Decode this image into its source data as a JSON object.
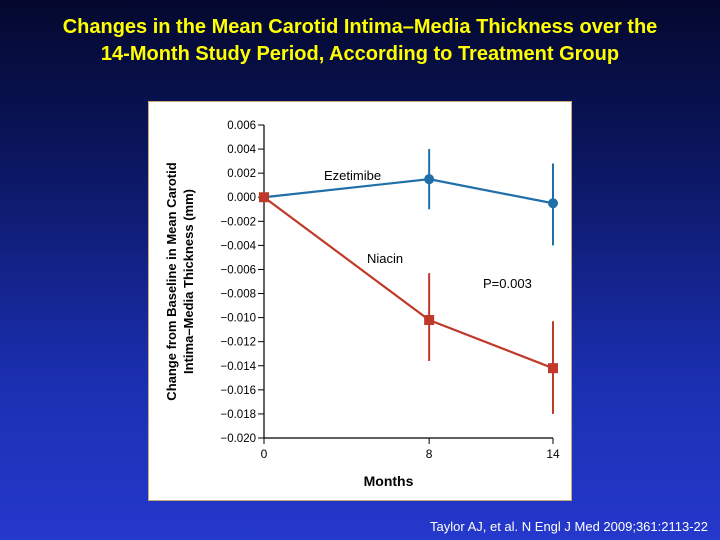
{
  "slide": {
    "title_line1": "Changes in the Mean Carotid Intima–Media Thickness over the",
    "title_line2": "14-Month Study Period, According to Treatment Group",
    "citation": "Taylor AJ, et al. N Engl J Med 2009;361:2113-22"
  },
  "chart_data": {
    "type": "line",
    "xlabel": "Months",
    "ylabel_line1": "Change from Baseline in Mean Carotid",
    "ylabel_line2": "Intima–Media Thickness (mm)",
    "x_ticks": [
      0,
      8,
      14
    ],
    "x_tick_labels": [
      "0",
      "8",
      "14"
    ],
    "xlim": [
      0,
      14
    ],
    "ylim": [
      -0.02,
      0.006
    ],
    "y_ticks": [
      0.006,
      0.004,
      0.002,
      0.0,
      -0.002,
      -0.004,
      -0.006,
      -0.008,
      -0.01,
      -0.012,
      -0.014,
      -0.016,
      -0.018,
      -0.02
    ],
    "y_tick_labels": [
      "0.006",
      "0.004",
      "0.002",
      "0.000",
      "−0.002",
      "−0.004",
      "−0.006",
      "−0.008",
      "−0.010",
      "−0.012",
      "−0.014",
      "−0.016",
      "−0.018",
      "−0.020"
    ],
    "grid": false,
    "series": [
      {
        "name": "Ezetimibe",
        "color": "#1f6fa8",
        "marker": "circle",
        "x": [
          0,
          8,
          14
        ],
        "y": [
          0.0,
          0.0015,
          -0.0005
        ],
        "err_low": [
          0.0,
          -0.001,
          -0.004
        ],
        "err_high": [
          0.0,
          0.004,
          0.0028
        ]
      },
      {
        "name": "Niacin",
        "color": "#c0392b",
        "marker": "square",
        "x": [
          0,
          8,
          14
        ],
        "y": [
          0.0,
          -0.0102,
          -0.0142
        ],
        "err_low": [
          0.0,
          -0.0136,
          -0.018
        ],
        "err_high": [
          0.0,
          -0.0063,
          -0.0103
        ]
      }
    ],
    "annotations": [
      {
        "text": "P=0.003"
      }
    ]
  }
}
